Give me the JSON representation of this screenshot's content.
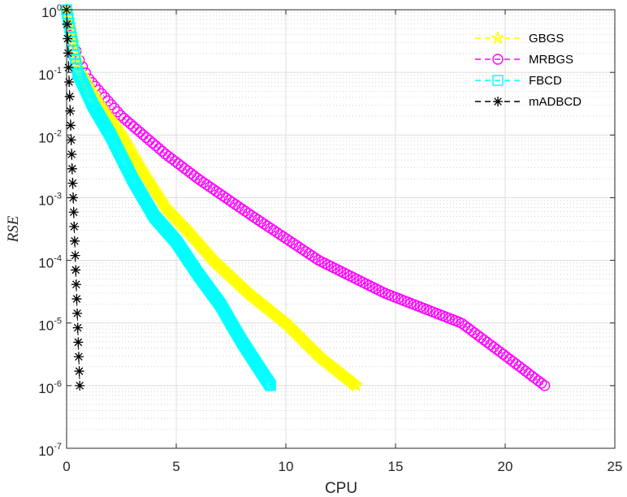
{
  "chart_data": {
    "type": "line",
    "yscale": "log",
    "xlabel": "CPU",
    "ylabel": "RSE",
    "xlim": [
      0,
      25
    ],
    "ylim": [
      1e-07,
      1
    ],
    "xticks": [
      0,
      5,
      10,
      15,
      20,
      25
    ],
    "ytick_exponents": [
      -7,
      -6,
      -5,
      -4,
      -3,
      -2,
      -1,
      0
    ],
    "ytick_base": "10",
    "grid": true,
    "minor_grid": true,
    "legend_position": "top-right",
    "series": [
      {
        "name": "GBGS",
        "color": "#ffff00",
        "marker": "pentagram",
        "end_cpu": 13.2,
        "anchor_points": [
          [
            0,
            1
          ],
          [
            0.6,
            0.1
          ],
          [
            1.5,
            0.03
          ],
          [
            2.5,
            0.01
          ],
          [
            3.5,
            0.0025
          ],
          [
            4.5,
            0.0007
          ],
          [
            5.5,
            0.0003
          ],
          [
            6.7,
            0.0001
          ],
          [
            8.3,
            3e-05
          ],
          [
            10.0,
            1e-05
          ],
          [
            11.5,
            3e-06
          ],
          [
            13.2,
            1e-06
          ]
        ]
      },
      {
        "name": "MRBGS",
        "color": "#ff00ff",
        "marker": "circle",
        "end_cpu": 21.8,
        "anchor_points": [
          [
            0,
            1
          ],
          [
            0.3,
            0.3
          ],
          [
            0.6,
            0.15
          ],
          [
            1.0,
            0.08
          ],
          [
            1.5,
            0.05
          ],
          [
            2.5,
            0.02
          ],
          [
            3.5,
            0.01
          ],
          [
            4.5,
            0.005
          ],
          [
            6.0,
            0.002
          ],
          [
            8.5,
            0.0005
          ],
          [
            11.5,
            0.0001
          ],
          [
            14.5,
            3e-05
          ],
          [
            18.0,
            1e-05
          ],
          [
            20.0,
            3e-06
          ],
          [
            21.8,
            1e-06
          ]
        ]
      },
      {
        "name": "FBCD",
        "color": "#00ffff",
        "marker": "square",
        "end_cpu": 9.3,
        "anchor_points": [
          [
            0,
            1
          ],
          [
            0.5,
            0.1
          ],
          [
            1.2,
            0.03
          ],
          [
            2.0,
            0.01
          ],
          [
            3.0,
            0.002
          ],
          [
            4.0,
            0.0005
          ],
          [
            5.0,
            0.0002
          ],
          [
            6.0,
            6e-05
          ],
          [
            7.0,
            2e-05
          ],
          [
            8.0,
            5e-06
          ],
          [
            9.3,
            1e-06
          ]
        ]
      },
      {
        "name": "mADBCD",
        "color": "#000000",
        "marker": "asterisk",
        "end_cpu": 0.6,
        "anchor_points": [
          [
            0,
            1
          ],
          [
            0.1,
            0.1
          ],
          [
            0.2,
            0.01
          ],
          [
            0.3,
            0.001
          ],
          [
            0.4,
            0.0001
          ],
          [
            0.5,
            1e-05
          ],
          [
            0.6,
            1e-06
          ]
        ]
      }
    ]
  }
}
